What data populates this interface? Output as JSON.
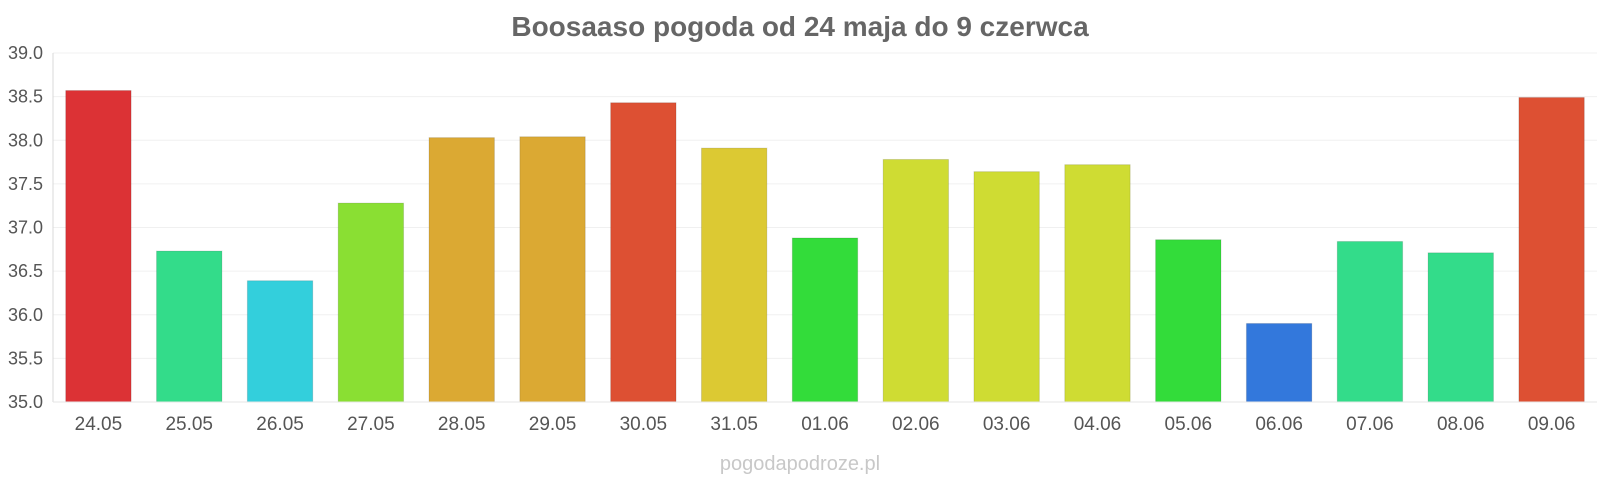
{
  "chart_data": {
    "type": "bar",
    "title": "Boosaaso pogoda od 24 maja do 9 czerwca",
    "categories": [
      "24.05",
      "25.05",
      "26.05",
      "27.05",
      "28.05",
      "29.05",
      "30.05",
      "31.05",
      "01.06",
      "02.06",
      "03.06",
      "04.06",
      "05.06",
      "06.06",
      "07.06",
      "08.06",
      "09.06"
    ],
    "values": [
      38.57,
      36.73,
      36.39,
      37.28,
      38.03,
      38.04,
      38.43,
      37.91,
      36.88,
      37.78,
      37.64,
      37.72,
      36.86,
      35.9,
      36.84,
      36.71,
      38.49
    ],
    "colors": [
      "#dc3235",
      "#33dc8a",
      "#33cfdc",
      "#8adf33",
      "#dba933",
      "#dba933",
      "#dd5033",
      "#dcc933",
      "#33dc3a",
      "#cfdc33",
      "#cfdc33",
      "#cfdc33",
      "#33dc3a",
      "#3378dc",
      "#33dc8a",
      "#33dc8a",
      "#dd5033"
    ],
    "yticks": [
      "35.0",
      "35.5",
      "36.0",
      "36.5",
      "37.0",
      "37.5",
      "38.0",
      "38.5",
      "39.0"
    ],
    "ylim": [
      35.0,
      39.0
    ],
    "grid": true
  },
  "footer": {
    "credit": "pogodapodroze.pl"
  }
}
